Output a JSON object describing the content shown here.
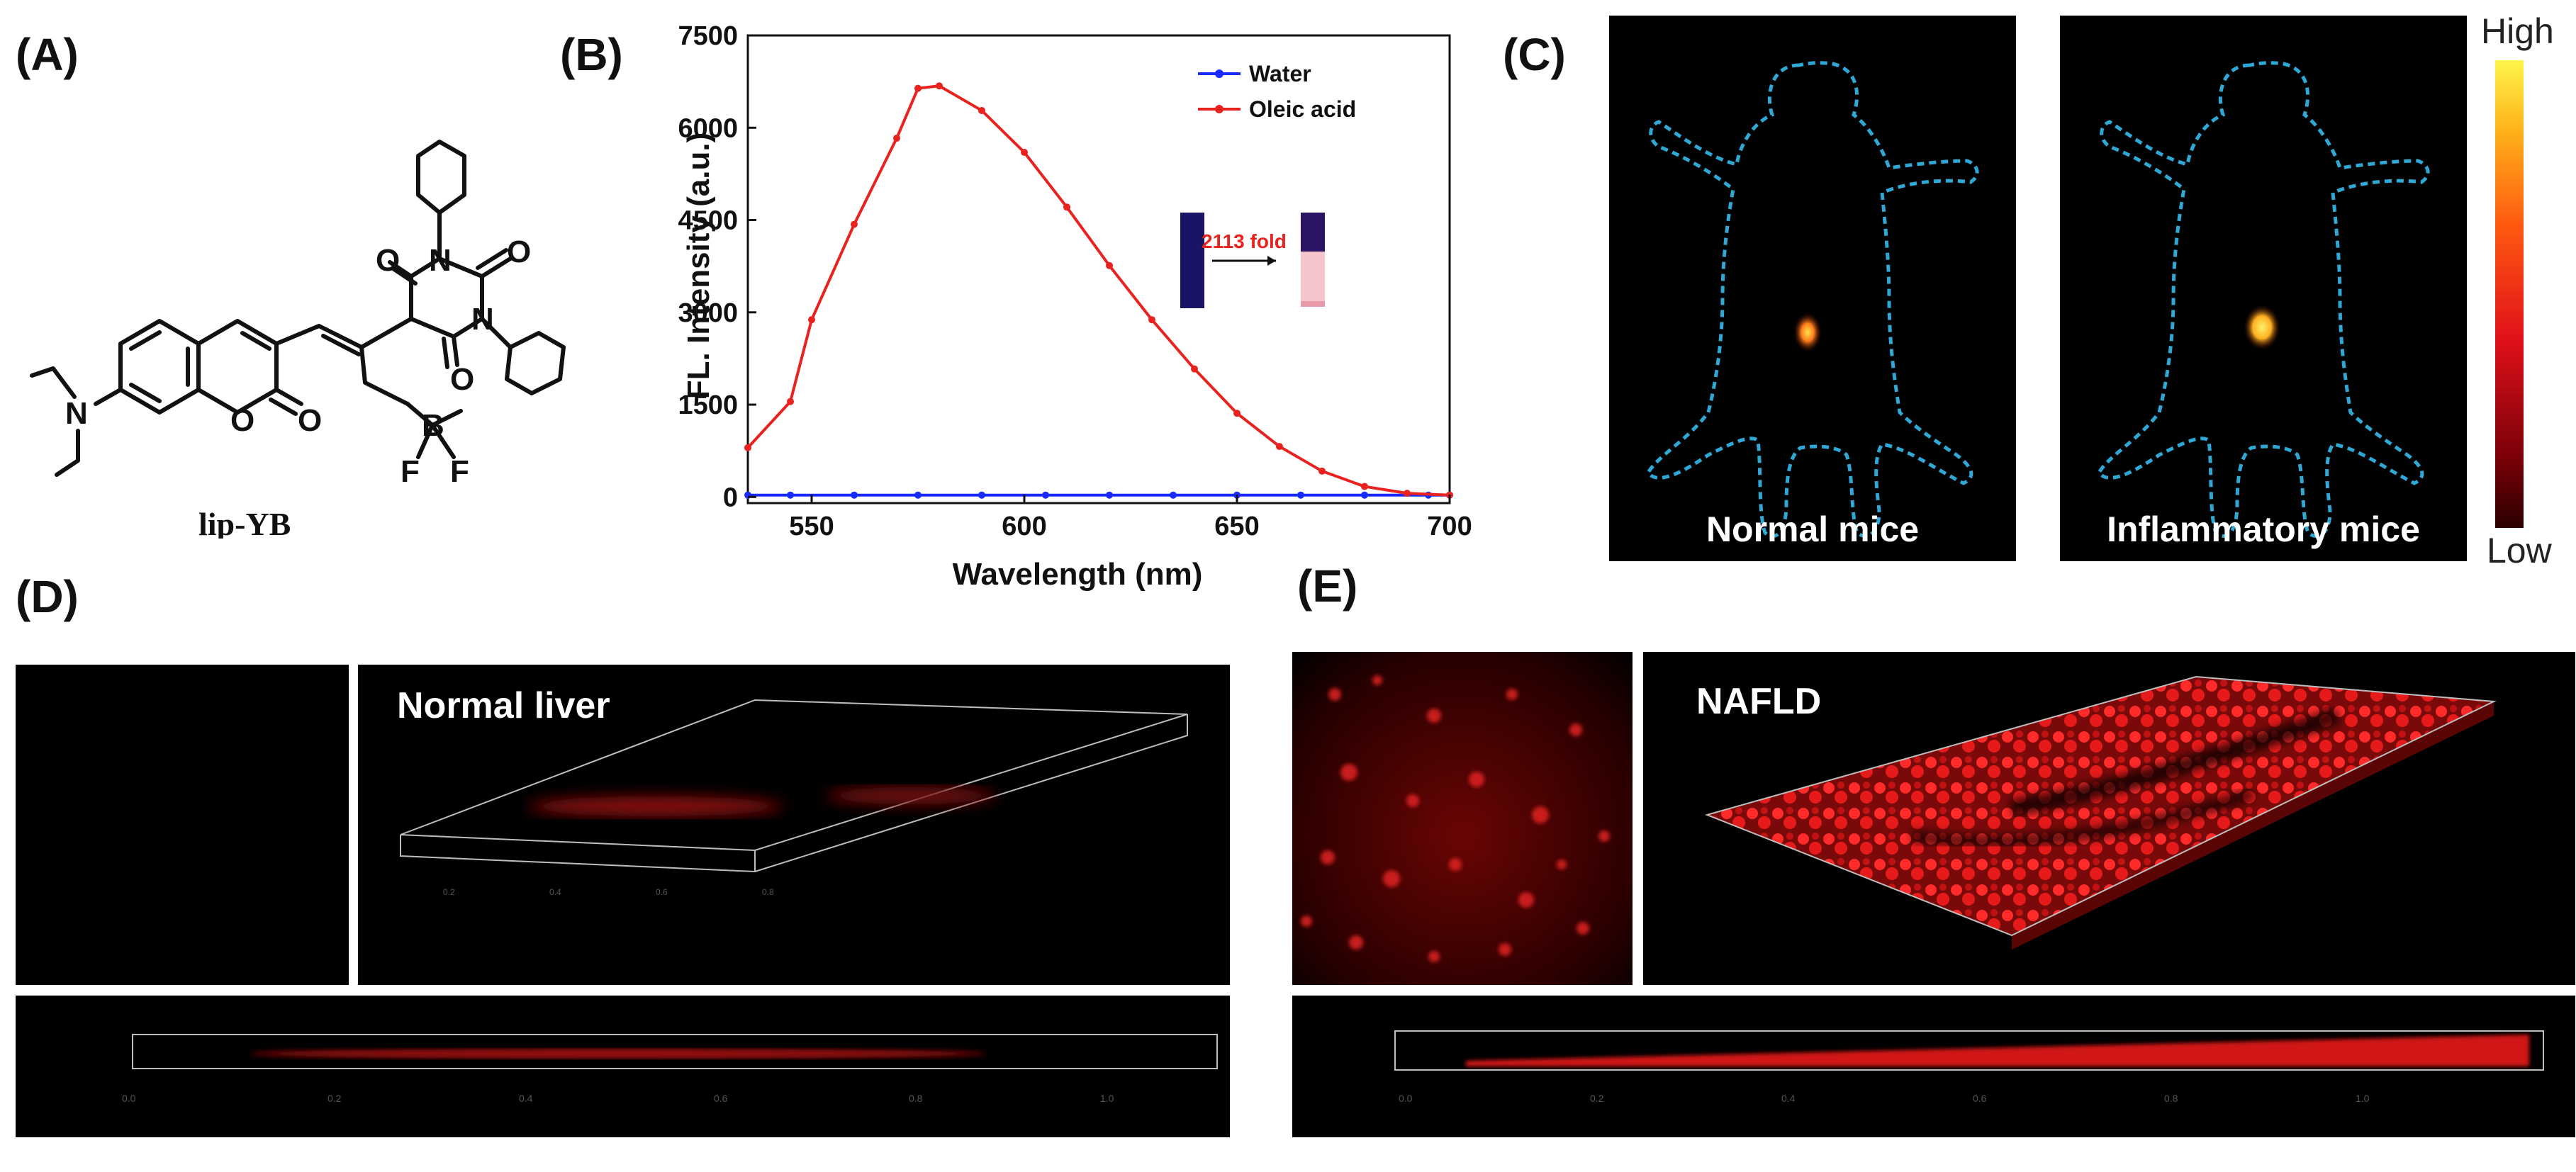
{
  "panels": {
    "a": "(A)",
    "b": "(B)",
    "c": "(C)",
    "d": "(D)",
    "e": "(E)"
  },
  "molecule": {
    "name": "lip-YB",
    "atoms": {
      "n": "N",
      "o": "O",
      "b": "B",
      "f": "F"
    }
  },
  "colorbar": {
    "high": "High",
    "low": "Low"
  },
  "mice": {
    "normal": "Normal mice",
    "inflammatory": "Inflammatory mice"
  },
  "micro": {
    "normal": "Normal liver",
    "nafld": "NAFLD"
  },
  "inset": {
    "fold": "2113 fold"
  },
  "colors": {
    "water": "#1a2bff",
    "oleic": "#e8231f",
    "outline": "#2fa8d6"
  },
  "chart_data": {
    "type": "line",
    "title": "",
    "xlabel": "Wavelength (nm)",
    "ylabel": "FL. Intensity (a.u.)",
    "xlim": [
      535,
      700
    ],
    "ylim": [
      -100,
      7500
    ],
    "xticks": [
      550,
      600,
      650,
      700
    ],
    "yticks": [
      0,
      1500,
      3000,
      4500,
      6000,
      7500
    ],
    "legend": "top-right",
    "series": [
      {
        "name": "Water",
        "x": [
          535,
          545,
          560,
          575,
          590,
          605,
          620,
          635,
          650,
          665,
          680,
          695,
          700
        ],
        "y": [
          30,
          30,
          30,
          30,
          30,
          30,
          30,
          30,
          30,
          30,
          30,
          30,
          30
        ]
      },
      {
        "name": "Oleic acid",
        "x": [
          535,
          545,
          550,
          560,
          570,
          575,
          580,
          590,
          600,
          610,
          620,
          630,
          640,
          650,
          660,
          670,
          680,
          690,
          700
        ],
        "y": [
          800,
          1550,
          2880,
          4430,
          5830,
          6640,
          6680,
          6280,
          5600,
          4710,
          3760,
          2880,
          2080,
          1360,
          820,
          420,
          170,
          60,
          30
        ]
      }
    ]
  }
}
